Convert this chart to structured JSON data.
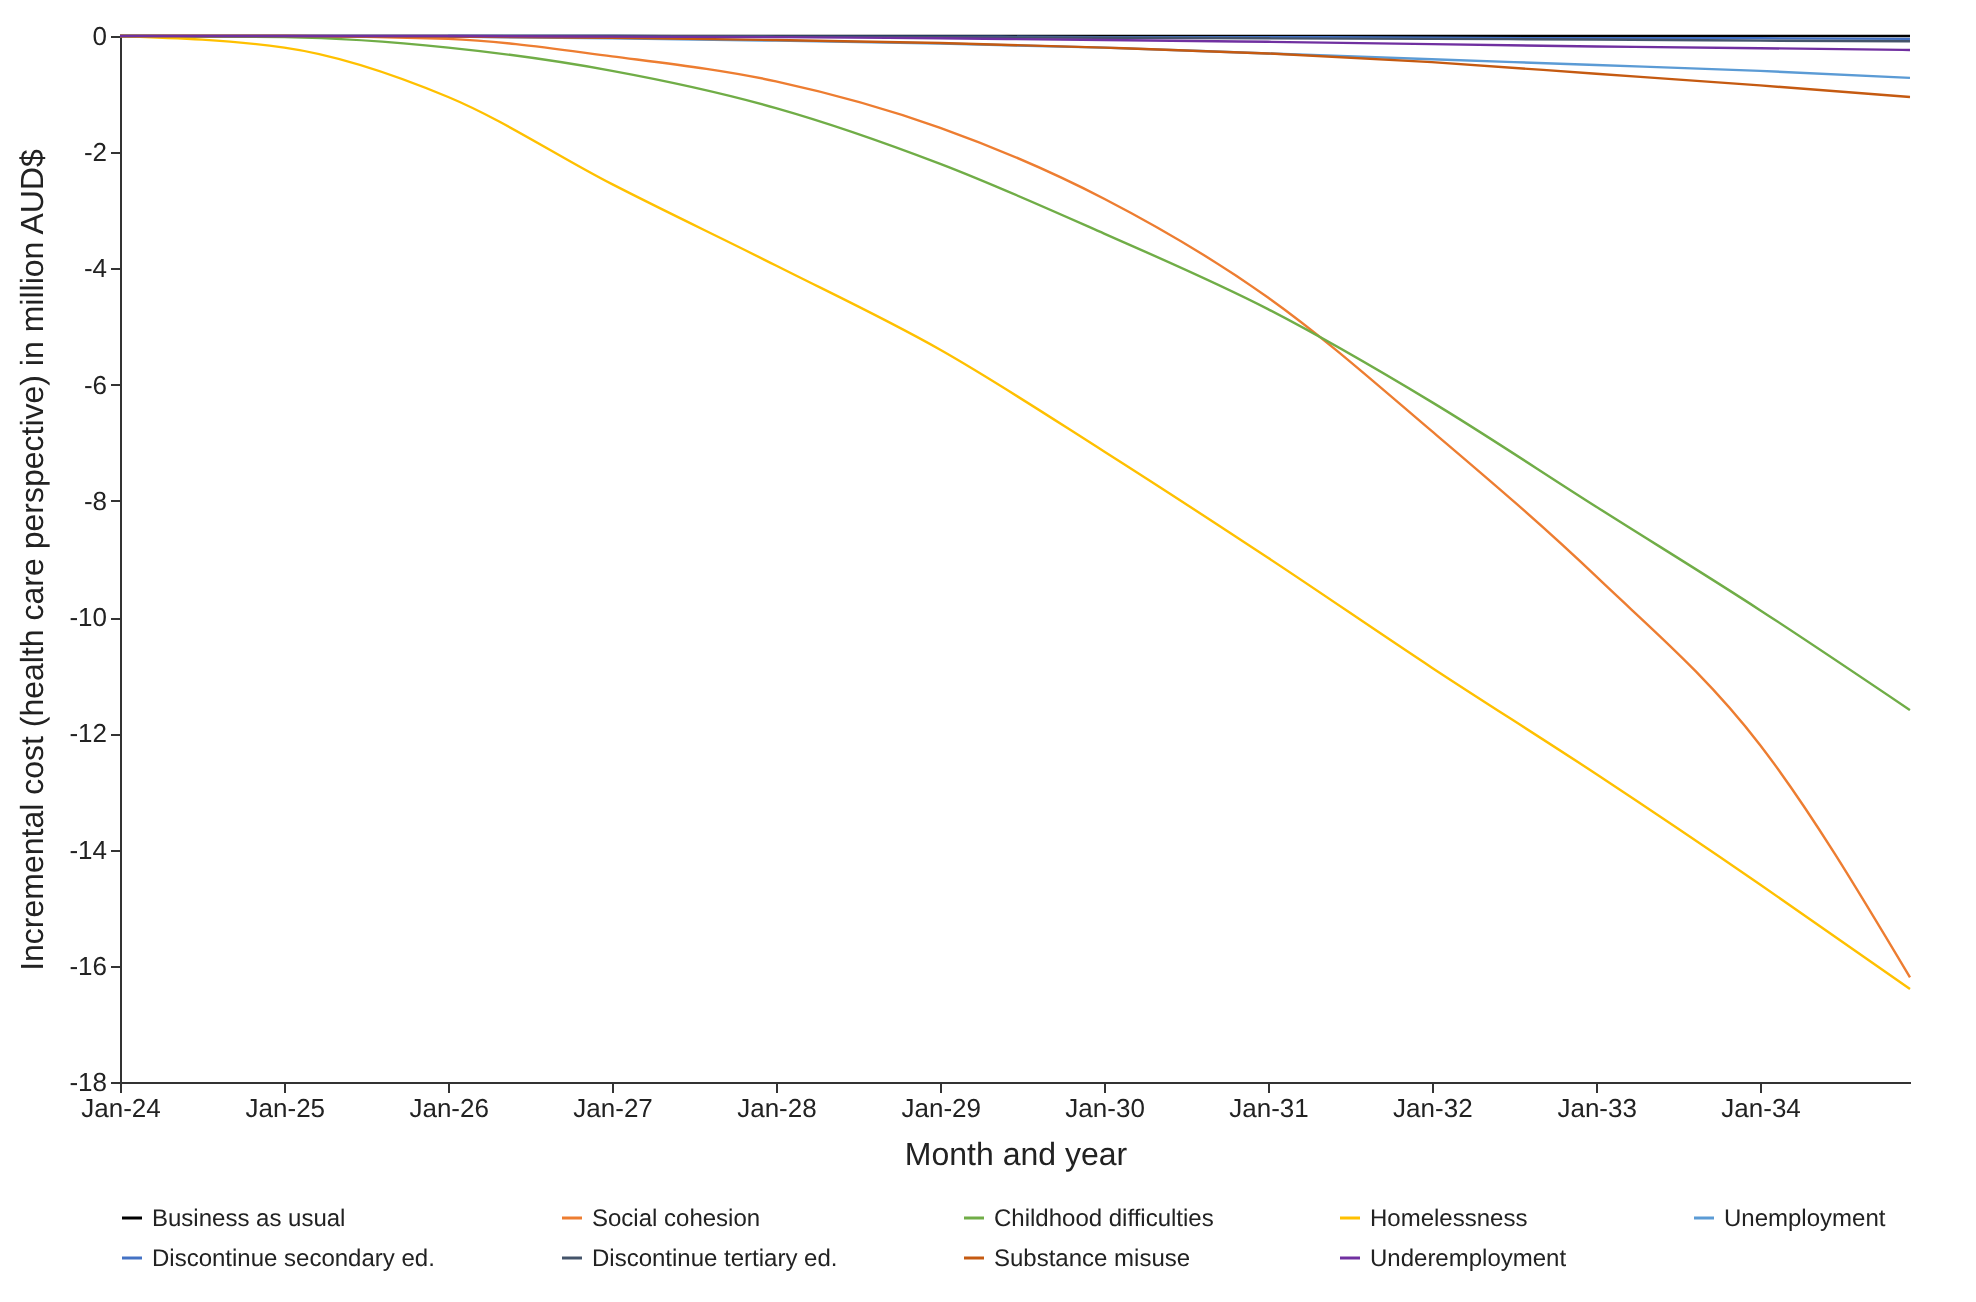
{
  "chart_data": {
    "type": "line",
    "xlabel": "Month and year",
    "ylabel": "Incremental cost (health care perspective) in million AUD$",
    "x": [
      "2024-01",
      "2025-01",
      "2026-01",
      "2027-01",
      "2028-01",
      "2029-01",
      "2030-01",
      "2031-01",
      "2032-01",
      "2033-01",
      "2034-01",
      "2034-12"
    ],
    "xlim": [
      "2024-01",
      "2034-12"
    ],
    "xticks": [
      {
        "value": "2024-01",
        "label": "Jan-24"
      },
      {
        "value": "2025-01",
        "label": "Jan-25"
      },
      {
        "value": "2026-01",
        "label": "Jan-26"
      },
      {
        "value": "2027-01",
        "label": "Jan-27"
      },
      {
        "value": "2028-01",
        "label": "Jan-28"
      },
      {
        "value": "2029-01",
        "label": "Jan-29"
      },
      {
        "value": "2030-01",
        "label": "Jan-30"
      },
      {
        "value": "2031-01",
        "label": "Jan-31"
      },
      {
        "value": "2032-01",
        "label": "Jan-32"
      },
      {
        "value": "2033-01",
        "label": "Jan-33"
      },
      {
        "value": "2034-01",
        "label": "Jan-34"
      }
    ],
    "ylim": [
      -18,
      0
    ],
    "yticks": [
      -18,
      -16,
      -14,
      -12,
      -10,
      -8,
      -6,
      -4,
      -2,
      0
    ],
    "grid": false,
    "legend": "bottom",
    "marker": "none",
    "line_style": "solid",
    "series": [
      {
        "name": "Business as usual",
        "color": "#000000",
        "values": [
          0,
          0,
          0,
          0,
          0,
          0,
          0,
          0,
          0,
          0,
          0,
          0
        ]
      },
      {
        "name": "Social cohesion",
        "color": "#ed7d31",
        "values": [
          0,
          0,
          -0.05,
          -0.35,
          -0.78,
          -1.58,
          -2.8,
          -4.5,
          -6.8,
          -9.3,
          -12.2,
          -16.2
        ]
      },
      {
        "name": "Childhood difficulties",
        "color": "#70ad47",
        "values": [
          0,
          -0.02,
          -0.2,
          -0.6,
          -1.24,
          -2.2,
          -3.4,
          -4.7,
          -6.3,
          -8.1,
          -9.88,
          -11.6
        ]
      },
      {
        "name": "Homelessness",
        "color": "#ffc000",
        "values": [
          0,
          -0.2,
          -1.05,
          -2.55,
          -3.95,
          -5.4,
          -7.15,
          -8.98,
          -10.87,
          -12.7,
          -14.6,
          -16.4
        ]
      },
      {
        "name": "Unemployment",
        "color": "#5b9bd5",
        "values": [
          null,
          null,
          -0.01,
          -0.04,
          -0.08,
          -0.13,
          -0.2,
          -0.3,
          -0.4,
          -0.5,
          -0.6,
          -0.72
        ]
      },
      {
        "name": "Discontinue secondary ed.",
        "color": "#4472c4",
        "values": [
          null,
          null,
          0,
          0,
          -0.01,
          -0.01,
          -0.02,
          -0.02,
          -0.03,
          -0.04,
          -0.04,
          -0.05
        ]
      },
      {
        "name": "Discontinue tertiary ed.",
        "color": "#44546a",
        "values": [
          0,
          0,
          0,
          0,
          -0.01,
          -0.02,
          -0.03,
          -0.04,
          -0.05,
          -0.06,
          -0.08,
          -0.09
        ]
      },
      {
        "name": "Substance misuse",
        "color": "#c55a11",
        "values": [
          0,
          0,
          -0.01,
          -0.03,
          -0.07,
          -0.12,
          -0.2,
          -0.3,
          -0.45,
          -0.65,
          -0.85,
          -1.05
        ]
      },
      {
        "name": "Underemployment",
        "color": "#7030a0",
        "values": [
          0,
          0,
          0,
          -0.01,
          -0.02,
          -0.04,
          -0.07,
          -0.1,
          -0.14,
          -0.18,
          -0.21,
          -0.24
        ]
      }
    ]
  }
}
